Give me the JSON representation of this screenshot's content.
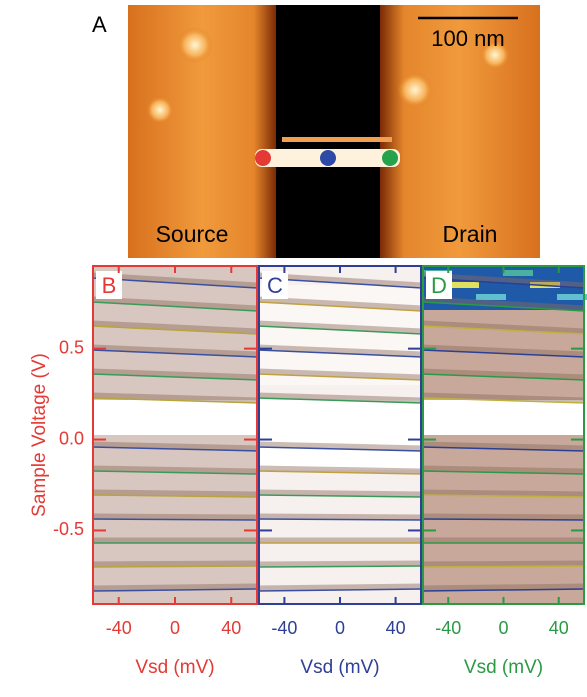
{
  "panel_a": {
    "label": "A",
    "scale_bar": "100 nm",
    "source": "Source",
    "drain": "Drain"
  },
  "chart_data": [
    {
      "type": "image-map",
      "panel": "B",
      "color": "#e53935",
      "xlabel": "Vsd (mV)",
      "ylabel": "Sample Voltage (V)",
      "xlim": [
        -59,
        59
      ],
      "xticks": [
        -40,
        0,
        40
      ],
      "ylim": [
        -0.91,
        0.96
      ],
      "yticks": [
        -0.5,
        {
          "value": 0,
          "label": "0.0"
        },
        0.5
      ]
    },
    {
      "type": "image-map",
      "panel": "C",
      "color": "#2e3f95",
      "xlabel": "Vsd (mV)",
      "xlim": [
        -59,
        59
      ],
      "xticks": [
        -40,
        0,
        40
      ],
      "ylim": [
        -0.91,
        0.96
      ],
      "yticks": [
        -0.5,
        {
          "value": 0,
          "label": "0.0"
        },
        0.5
      ]
    },
    {
      "type": "image-map",
      "panel": "D",
      "color": "#2a9a45",
      "xlabel": "Vsd (mV)",
      "xlim": [
        -59,
        59
      ],
      "xticks": [
        -40,
        0,
        40
      ],
      "ylim": [
        -0.91,
        0.96
      ],
      "yticks": [
        -0.5,
        {
          "value": 0,
          "label": "0.0"
        },
        0.5
      ]
    }
  ]
}
